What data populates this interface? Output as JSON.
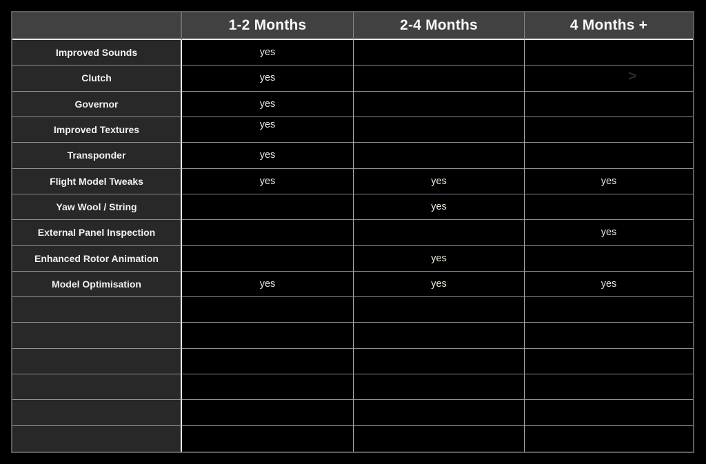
{
  "chart_data": {
    "type": "table",
    "columns": [
      "",
      "1-2 Months",
      "2-4 Months",
      "4 Months +"
    ],
    "rows": [
      {
        "label": "Improved Sounds",
        "values": [
          "yes",
          "",
          ""
        ]
      },
      {
        "label": "Clutch",
        "values": [
          "yes",
          "",
          ""
        ]
      },
      {
        "label": "Governor",
        "values": [
          "yes",
          "",
          ""
        ]
      },
      {
        "label": "Improved Textures",
        "values": [
          "yes",
          "",
          ""
        ]
      },
      {
        "label": "Transponder",
        "values": [
          "yes",
          "",
          ""
        ]
      },
      {
        "label": "Flight Model Tweaks",
        "values": [
          "yes",
          "yes",
          "yes"
        ]
      },
      {
        "label": "Yaw Wool / String",
        "values": [
          "",
          "yes",
          ""
        ]
      },
      {
        "label": "External Panel Inspection",
        "values": [
          "",
          "",
          "yes"
        ]
      },
      {
        "label": "Enhanced Rotor Animation",
        "values": [
          "",
          "yes",
          ""
        ]
      },
      {
        "label": "Model Optimisation",
        "values": [
          "yes",
          "yes",
          "yes"
        ]
      },
      {
        "label": "",
        "values": [
          "",
          "",
          ""
        ]
      },
      {
        "label": "",
        "values": [
          "",
          "",
          ""
        ]
      },
      {
        "label": "",
        "values": [
          "",
          "",
          ""
        ]
      },
      {
        "label": "",
        "values": [
          "",
          "",
          ""
        ]
      },
      {
        "label": "",
        "values": [
          "",
          "",
          ""
        ]
      },
      {
        "label": "",
        "values": [
          "",
          "",
          ""
        ]
      }
    ]
  },
  "decorations": {
    "faint_chevron": {
      "row_index": 1,
      "column_index": 2,
      "glyph": ">"
    }
  },
  "colors": {
    "page_bg": "#000000",
    "header_bg": "#414141",
    "label_bg": "#282828",
    "cell_bg": "#000000",
    "header_text": "#faf9f6",
    "label_text": "#f4f2ee",
    "value_text": "#eae6dd",
    "grid_line": "#909090",
    "divider_white": "#f2f2f2",
    "outer_border": "#5c5c5c"
  }
}
